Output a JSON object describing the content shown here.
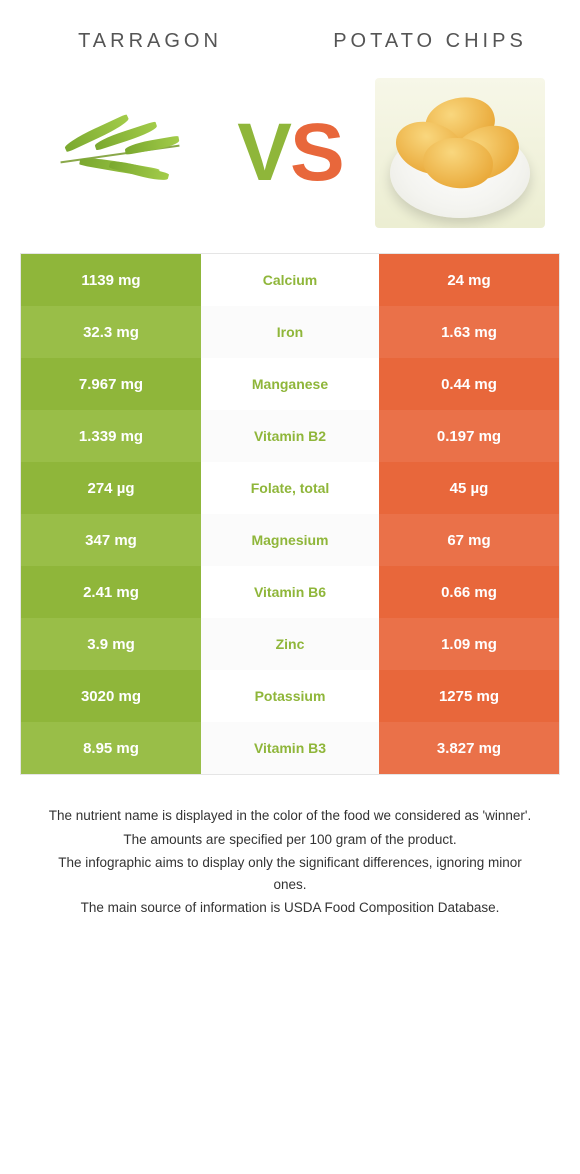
{
  "header": {
    "left_title": "TARRAGON",
    "right_title": "POTATO CHIPS",
    "vs_v": "V",
    "vs_s": "S"
  },
  "colors": {
    "left_primary": "#8fb63a",
    "left_alt": "#99be48",
    "right_primary": "#e8673b",
    "right_alt": "#ea7149",
    "mid_text_winner_left": "#8fb63a",
    "vs_v_color": "#8fb63a",
    "vs_s_color": "#e8673b"
  },
  "nutrients": [
    {
      "label": "Calcium",
      "left": "1139 mg",
      "right": "24 mg",
      "winner": "left"
    },
    {
      "label": "Iron",
      "left": "32.3 mg",
      "right": "1.63 mg",
      "winner": "left"
    },
    {
      "label": "Manganese",
      "left": "7.967 mg",
      "right": "0.44 mg",
      "winner": "left"
    },
    {
      "label": "Vitamin B2",
      "left": "1.339 mg",
      "right": "0.197 mg",
      "winner": "left"
    },
    {
      "label": "Folate, total",
      "left": "274 µg",
      "right": "45 µg",
      "winner": "left"
    },
    {
      "label": "Magnesium",
      "left": "347 mg",
      "right": "67 mg",
      "winner": "left"
    },
    {
      "label": "Vitamin B6",
      "left": "2.41 mg",
      "right": "0.66 mg",
      "winner": "left"
    },
    {
      "label": "Zinc",
      "left": "3.9 mg",
      "right": "1.09 mg",
      "winner": "left"
    },
    {
      "label": "Potassium",
      "left": "3020 mg",
      "right": "1275 mg",
      "winner": "left"
    },
    {
      "label": "Vitamin B3",
      "left": "8.95 mg",
      "right": "3.827 mg",
      "winner": "left"
    }
  ],
  "footnotes": [
    "The nutrient name is displayed in the color of the food we considered as 'winner'.",
    "The amounts are specified per 100 gram of the product.",
    "The infographic aims to display only the significant differences, ignoring minor ones.",
    "The main source of information is USDA Food Composition Database."
  ]
}
